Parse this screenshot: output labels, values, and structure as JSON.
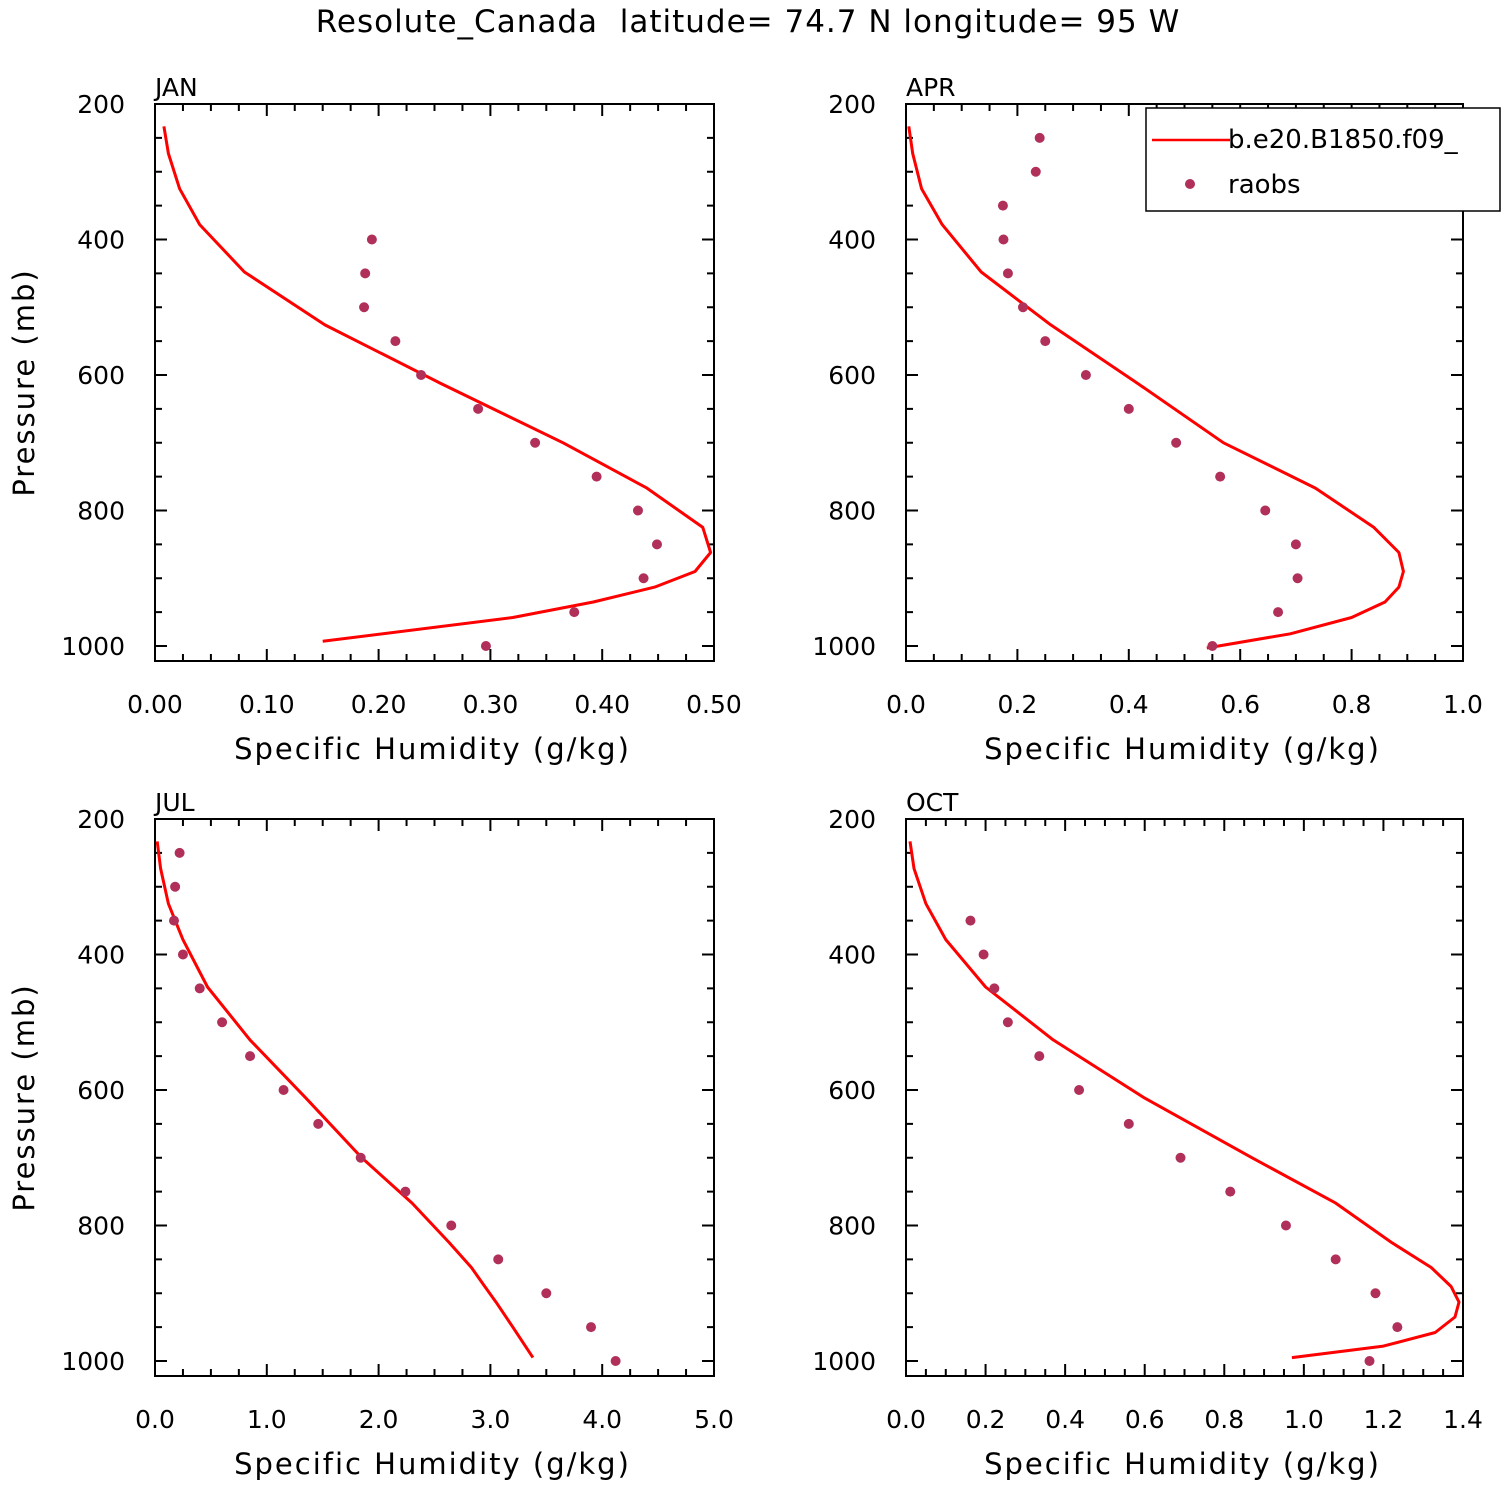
{
  "title": "Resolute_Canada  latitude= 74.7 N longitude= 95 W",
  "colors": {
    "model_line": "#ff0000",
    "raobs_marker": "#b0305a",
    "axes": "#000000",
    "background": "#ffffff"
  },
  "legend": {
    "placement": "top-right of APR panel",
    "entries": [
      "b.e20.B1850.f09_",
      "raobs"
    ]
  },
  "chart_data": [
    {
      "type": "line",
      "panel": "JAN",
      "xlabel": "Specific Humidity (g/kg)",
      "ylabel": "Pressure (mb)",
      "xlim": [
        0,
        0.5
      ],
      "ylim": [
        200,
        1000
      ],
      "xticks": [
        "0.00",
        "0.10",
        "0.20",
        "0.30",
        "0.40",
        "0.50"
      ],
      "yticks": [
        "200",
        "400",
        "600",
        "800",
        "1000"
      ],
      "series": [
        {
          "name": "b.e20.B1850.f09_",
          "style": "line",
          "x": [
            0.008,
            0.012,
            0.022,
            0.04,
            0.08,
            0.152,
            0.255,
            0.365,
            0.44,
            0.49,
            0.497,
            0.483,
            0.447,
            0.392,
            0.32,
            0.15
          ],
          "y": [
            233,
            273,
            325,
            378,
            448,
            526,
            612,
            700,
            767,
            825,
            862,
            890,
            913,
            935,
            958,
            993
          ]
        },
        {
          "name": "raobs",
          "style": "markers",
          "x": [
            0.194,
            0.188,
            0.187,
            0.215,
            0.238,
            0.289,
            0.34,
            0.395,
            0.432,
            0.449,
            0.437,
            0.375,
            0.296
          ],
          "y": [
            400,
            450,
            500,
            550,
            600,
            650,
            700,
            750,
            800,
            850,
            900,
            950,
            1000
          ]
        }
      ]
    },
    {
      "type": "line",
      "panel": "APR",
      "xlabel": "Specific Humidity (g/kg)",
      "ylabel": "",
      "xlim": [
        0,
        1.0
      ],
      "ylim": [
        200,
        1000
      ],
      "xticks": [
        "0.0",
        "0.2",
        "0.4",
        "0.6",
        "0.8",
        "1.0"
      ],
      "yticks": [
        "200",
        "400",
        "600",
        "800",
        "1000"
      ],
      "series": [
        {
          "name": "b.e20.B1850.f09_",
          "style": "line",
          "x": [
            0.005,
            0.012,
            0.028,
            0.065,
            0.135,
            0.26,
            0.415,
            0.57,
            0.735,
            0.84,
            0.885,
            0.893,
            0.885,
            0.86,
            0.8,
            0.69,
            0.54
          ],
          "y": [
            233,
            273,
            325,
            378,
            448,
            526,
            612,
            700,
            767,
            825,
            862,
            890,
            913,
            935,
            958,
            982,
            1003
          ]
        },
        {
          "name": "raobs",
          "style": "markers",
          "x": [
            0.24,
            0.233,
            0.174,
            0.175,
            0.183,
            0.21,
            0.25,
            0.323,
            0.4,
            0.485,
            0.564,
            0.645,
            0.7,
            0.703,
            0.668,
            0.55
          ],
          "y": [
            250,
            300,
            350,
            400,
            450,
            500,
            550,
            600,
            650,
            700,
            750,
            800,
            850,
            900,
            950,
            1000
          ]
        }
      ]
    },
    {
      "type": "line",
      "panel": "JUL",
      "xlabel": "Specific Humidity (g/kg)",
      "ylabel": "Pressure (mb)",
      "xlim": [
        0,
        5.0
      ],
      "ylim": [
        200,
        1000
      ],
      "xticks": [
        "0.0",
        "1.0",
        "2.0",
        "3.0",
        "4.0",
        "5.0"
      ],
      "yticks": [
        "200",
        "400",
        "600",
        "800",
        "1000"
      ],
      "series": [
        {
          "name": "b.e20.B1850.f09_",
          "style": "line",
          "x": [
            0.02,
            0.05,
            0.12,
            0.25,
            0.47,
            0.85,
            1.35,
            1.85,
            2.3,
            2.63,
            2.83,
            2.95,
            3.05,
            3.2,
            3.38
          ],
          "y": [
            233,
            273,
            325,
            378,
            448,
            526,
            612,
            700,
            767,
            825,
            862,
            890,
            913,
            950,
            995
          ]
        },
        {
          "name": "raobs",
          "style": "markers",
          "x": [
            0.22,
            0.18,
            0.17,
            0.25,
            0.4,
            0.6,
            0.85,
            1.15,
            1.46,
            1.84,
            2.24,
            2.65,
            3.07,
            3.5,
            3.9,
            4.12
          ],
          "y": [
            250,
            300,
            350,
            400,
            450,
            500,
            550,
            600,
            650,
            700,
            750,
            800,
            850,
            900,
            950,
            1000
          ]
        }
      ]
    },
    {
      "type": "line",
      "panel": "OCT",
      "xlabel": "Specific Humidity (g/kg)",
      "ylabel": "",
      "xlim": [
        0,
        1.4
      ],
      "ylim": [
        200,
        1000
      ],
      "xticks": [
        "0.0",
        "0.2",
        "0.4",
        "0.6",
        "0.8",
        "1.0",
        "1.2",
        "1.4"
      ],
      "yticks": [
        "200",
        "400",
        "600",
        "800",
        "1000"
      ],
      "series": [
        {
          "name": "b.e20.B1850.f09_",
          "style": "line",
          "x": [
            0.01,
            0.02,
            0.05,
            0.1,
            0.2,
            0.37,
            0.6,
            0.87,
            1.08,
            1.22,
            1.32,
            1.37,
            1.39,
            1.38,
            1.33,
            1.2,
            0.97
          ],
          "y": [
            233,
            273,
            325,
            378,
            448,
            526,
            612,
            700,
            767,
            825,
            862,
            890,
            913,
            935,
            958,
            978,
            995
          ]
        },
        {
          "name": "raobs",
          "style": "markers",
          "x": [
            0.162,
            0.195,
            0.222,
            0.256,
            0.335,
            0.435,
            0.56,
            0.69,
            0.815,
            0.955,
            1.08,
            1.18,
            1.235,
            1.165
          ],
          "y": [
            350,
            400,
            450,
            500,
            550,
            600,
            650,
            700,
            750,
            800,
            850,
            900,
            950,
            1000
          ]
        }
      ]
    }
  ]
}
